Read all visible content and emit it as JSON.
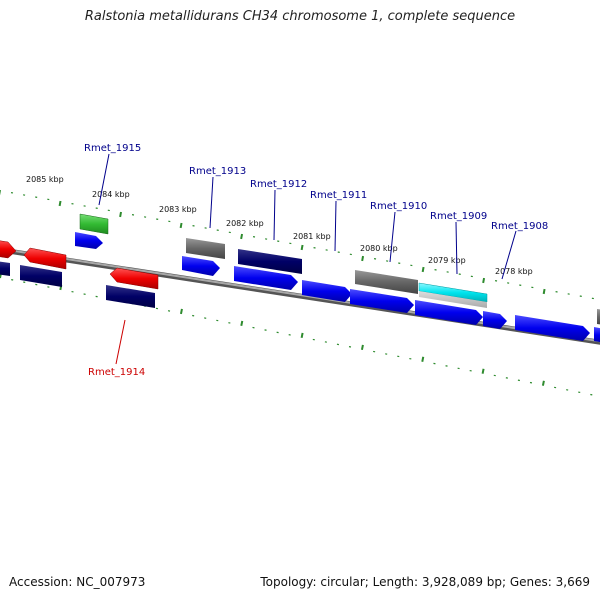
{
  "title": "Ralstonia metallidurans CH34 chromosome 1, complete sequence",
  "accession": "Accession: NC_007973",
  "summary": "Topology: circular; Length: 3,928,089 bp; Genes: 3,669",
  "colors": {
    "backbone": "#8a8a8a",
    "tick_mark": "#2e8b2e",
    "label_blue": "#00008b",
    "label_red": "#cc0000",
    "cds_blue": "#0000ee",
    "cds_navy": "#000066",
    "cds_red": "#ee0000",
    "cds_gray": "#666666",
    "cds_green": "#33bb33",
    "cds_cyan": "#00e5ee"
  },
  "ticks": [
    {
      "label": "2085 kbp"
    },
    {
      "label": "2084 kbp"
    },
    {
      "label": "2083 kbp"
    },
    {
      "label": "2082 kbp"
    },
    {
      "label": "2081 kbp"
    },
    {
      "label": "2080 kbp"
    },
    {
      "label": "2079 kbp"
    },
    {
      "label": "2078 kbp"
    }
  ],
  "gene_labels": [
    {
      "text": "Rmet_1915",
      "strand": "plus"
    },
    {
      "text": "Rmet_1914",
      "strand": "minus"
    },
    {
      "text": "Rmet_1913",
      "strand": "plus"
    },
    {
      "text": "Rmet_1912",
      "strand": "plus"
    },
    {
      "text": "Rmet_1911",
      "strand": "plus"
    },
    {
      "text": "Rmet_1910",
      "strand": "plus"
    },
    {
      "text": "Rmet_1909",
      "strand": "plus"
    },
    {
      "text": "Rmet_1908",
      "strand": "plus"
    }
  ]
}
